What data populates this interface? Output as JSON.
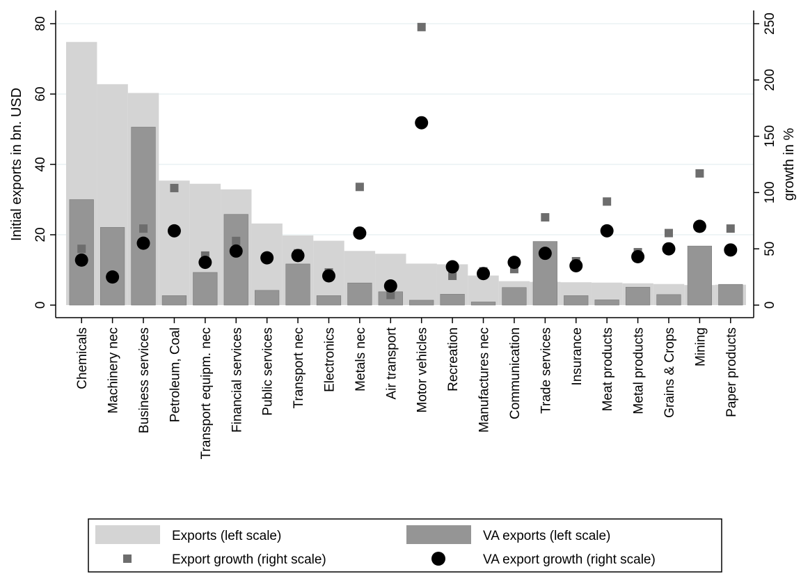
{
  "chart_data": {
    "type": "bar",
    "categories": [
      "Chemicals",
      "Machinery nec",
      "Business services",
      "Petroleum, Coal",
      "Transport equipm. nec",
      "Financial services",
      "Public services",
      "Transport nec",
      "Electronics",
      "Metals nec",
      "Air transport",
      "Motor vehicles",
      "Recreation",
      "Manufactures nec",
      "Communication",
      "Trade services",
      "Insurance",
      "Meat products",
      "Metal products",
      "Grains & Crops",
      "Mining",
      "Paper products"
    ],
    "ylabel": "Initial exports in bn. USD",
    "y2label": "growth in %",
    "ylim": [
      0,
      80
    ],
    "y2lim": [
      0,
      250
    ],
    "yticks": [
      "0",
      "20",
      "40",
      "60",
      "80"
    ],
    "y2ticks": [
      "0",
      "50",
      "100",
      "150",
      "200",
      "250"
    ],
    "grid": true,
    "legend_position": "bottom",
    "series": [
      {
        "name": "Exports (left scale)",
        "axis": "left",
        "kind": "bar",
        "color": "#d4d4d4",
        "values": [
          74.8,
          62.8,
          60.3,
          35.4,
          34.5,
          32.9,
          23.2,
          19.8,
          18.3,
          15.4,
          14.6,
          11.8,
          11.6,
          8.4,
          6.8,
          6.6,
          6.5,
          6.4,
          6.2,
          6.0,
          5.7,
          5.8
        ]
      },
      {
        "name": "VA exports (left scale)",
        "axis": "left",
        "kind": "bar",
        "color": "#959595",
        "values": [
          30.0,
          22.1,
          50.6,
          2.7,
          9.3,
          25.8,
          4.2,
          11.7,
          2.7,
          6.3,
          3.8,
          1.4,
          3.1,
          0.9,
          5.0,
          18.1,
          2.7,
          1.5,
          5.1,
          3.0,
          16.8,
          5.9
        ]
      },
      {
        "name": "Export growth (right scale)",
        "axis": "right",
        "kind": "square",
        "color": "#6d6d6d",
        "values": [
          50,
          null,
          68,
          104,
          44,
          57,
          null,
          46,
          29,
          105,
          9,
          247,
          26,
          30,
          32,
          78,
          39,
          92,
          47,
          64,
          117,
          68
        ]
      },
      {
        "name": "VA export growth (right scale)",
        "axis": "right",
        "kind": "circle",
        "color": "#000000",
        "values": [
          40,
          25,
          55,
          66,
          38,
          48,
          42,
          44,
          26,
          64,
          17,
          162,
          34,
          28,
          38,
          46,
          35,
          66,
          43,
          50,
          70,
          49
        ]
      }
    ]
  }
}
